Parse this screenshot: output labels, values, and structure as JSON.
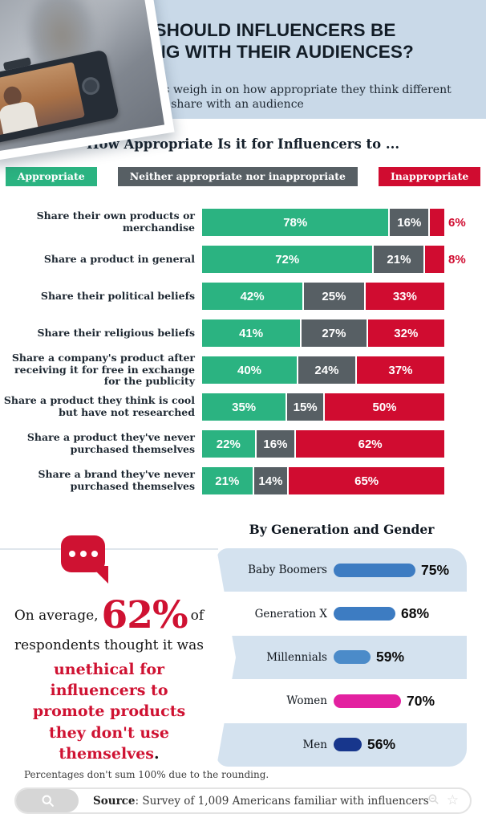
{
  "header": {
    "title_line1": "WHAT SHOULD INFLUENCERS BE",
    "title_line2": "SHARING WITH THEIR AUDIENCES?",
    "subtitle": "Respondents weigh in on how appropriate they think different topics are to share with an audience"
  },
  "chart": {
    "title": "How Appropriate Is it for Influencers to ...",
    "colors": {
      "appropriate": "#2bb381",
      "neither": "#575f64",
      "inappropriate": "#d00c30"
    },
    "legend": [
      {
        "label": "Appropriate",
        "color": "#2bb381"
      },
      {
        "label": "Neither appropriate nor inappropriate",
        "color": "#575f64"
      },
      {
        "label": "Inappropriate",
        "color": "#d00c30"
      }
    ],
    "rows": [
      {
        "label": "Share their own products or merchandise",
        "appropriate": 78,
        "neither": 16,
        "inappropriate": 6
      },
      {
        "label": "Share a product in general",
        "appropriate": 72,
        "neither": 21,
        "inappropriate": 8
      },
      {
        "label": "Share their political beliefs",
        "appropriate": 42,
        "neither": 25,
        "inappropriate": 33
      },
      {
        "label": "Share their religious beliefs",
        "appropriate": 41,
        "neither": 27,
        "inappropriate": 32
      },
      {
        "label": "Share a company's product after receiving it for free in exchange for the publicity",
        "appropriate": 40,
        "neither": 24,
        "inappropriate": 37
      },
      {
        "label": "Share a product they think is cool but have not researched",
        "appropriate": 35,
        "neither": 15,
        "inappropriate": 50
      },
      {
        "label": "Share a product they've never purchased themselves",
        "appropriate": 22,
        "neither": 16,
        "inappropriate": 62
      },
      {
        "label": "Share a brand they've never purchased themselves",
        "appropriate": 21,
        "neither": 14,
        "inappropriate": 65
      }
    ]
  },
  "callout": {
    "prefix": "On average,",
    "big_stat": "62%",
    "suffix": "of",
    "line2": "respondents thought it was",
    "emphasized": "unethical for influencers to promote products they don't use themselves",
    "period": "."
  },
  "breakdown": {
    "title": "By Generation and Gender",
    "rows": [
      {
        "label": "Baby Boomers",
        "value": 75,
        "color": "#3d7cc2",
        "band": "blue"
      },
      {
        "label": "Generation X",
        "value": 68,
        "color": "#3d7cc2",
        "band": "white"
      },
      {
        "label": "Millennials",
        "value": 59,
        "color": "#4b8bc9",
        "band": "blue"
      },
      {
        "label": "Women",
        "value": 70,
        "color": "#e321a0",
        "band": "white"
      },
      {
        "label": "Men",
        "value": 56,
        "color": "#17368c",
        "band": "blue"
      }
    ]
  },
  "footer": {
    "note": "Percentages don't sum 100% due to the rounding.",
    "source_label": "Source",
    "source_rest": ": Survey of 1,009 Americans familiar with influencers"
  },
  "chart_data": [
    {
      "type": "bar",
      "variant": "horizontal-stacked",
      "title": "How Appropriate Is it for Influencers to ...",
      "unit": "%",
      "categories": [
        "Share their own products or merchandise",
        "Share a product in general",
        "Share their political beliefs",
        "Share their religious beliefs",
        "Share a company's product after receiving it for free in exchange for the publicity",
        "Share a product they think is cool but have not researched",
        "Share a product they've never purchased themselves",
        "Share a brand they've never purchased themselves"
      ],
      "series": [
        {
          "name": "Appropriate",
          "color": "#2bb381",
          "values": [
            78,
            72,
            42,
            41,
            40,
            35,
            22,
            21
          ]
        },
        {
          "name": "Neither appropriate nor inappropriate",
          "color": "#575f64",
          "values": [
            16,
            21,
            25,
            27,
            24,
            15,
            16,
            14
          ]
        },
        {
          "name": "Inappropriate",
          "color": "#d00c30",
          "values": [
            6,
            8,
            33,
            32,
            37,
            50,
            62,
            65
          ]
        }
      ],
      "xlim": [
        0,
        100
      ],
      "legend_position": "top",
      "grid": false
    },
    {
      "type": "bar",
      "variant": "horizontal",
      "title": "By Generation and Gender",
      "unit": "%",
      "categories": [
        "Baby Boomers",
        "Generation X",
        "Millennials",
        "Women",
        "Men"
      ],
      "values": [
        75,
        68,
        59,
        70,
        56
      ],
      "colors": [
        "#3d7cc2",
        "#3d7cc2",
        "#4b8bc9",
        "#e321a0",
        "#17368c"
      ],
      "grid": false
    }
  ]
}
